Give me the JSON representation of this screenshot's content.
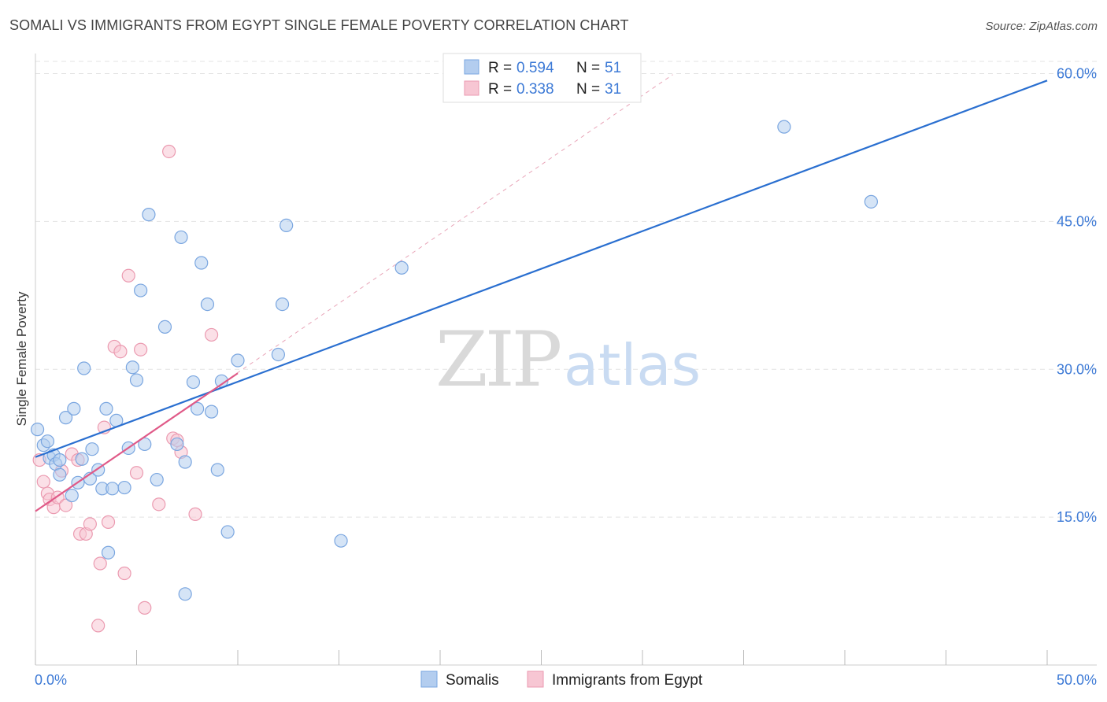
{
  "header": {
    "title": "SOMALI VS IMMIGRANTS FROM EGYPT SINGLE FEMALE POVERTY CORRELATION CHART",
    "source": "Source: ZipAtlas.com"
  },
  "watermark": {
    "zip": "ZIP",
    "atlas": "atlas"
  },
  "colors": {
    "somali_fill": "#b3cdef",
    "somali_stroke": "#7aa6e0",
    "somali_line": "#2a6fd0",
    "egypt_fill": "#f7c6d3",
    "egypt_stroke": "#eb9ab0",
    "egypt_line": "#e05a88",
    "grid": "#e3e3e3",
    "tick_text": "#3d7ad6"
  },
  "chart_data": {
    "type": "scatter",
    "title": "SOMALI VS IMMIGRANTS FROM EGYPT SINGLE FEMALE POVERTY CORRELATION CHART",
    "xlabel": "",
    "ylabel": "Single Female Poverty",
    "xlim": [
      0,
      50
    ],
    "ylim": [
      0,
      61
    ],
    "x_tick_labels": [
      "0.0%",
      "50.0%"
    ],
    "y_ticks": [
      15,
      30,
      45,
      60
    ],
    "y_tick_labels": [
      "15.0%",
      "30.0%",
      "45.0%",
      "60.0%"
    ],
    "grid": true,
    "legend": {
      "position": "top-center",
      "entries": [
        {
          "series": "Somalis",
          "r_label": "R =",
          "r_value": "0.594",
          "n_label": "N =",
          "n_value": "51"
        },
        {
          "series": "Immigrants from Egypt",
          "r_label": "R =",
          "r_value": "0.338",
          "n_label": "N =",
          "n_value": "31"
        }
      ]
    },
    "bottom_legend": [
      "Somalis",
      "Immigrants from Egypt"
    ],
    "series": [
      {
        "name": "Somalis",
        "points": [
          [
            0.1,
            23.9
          ],
          [
            0.4,
            22.3
          ],
          [
            0.6,
            22.7
          ],
          [
            0.7,
            21.0
          ],
          [
            0.9,
            21.3
          ],
          [
            1.0,
            20.4
          ],
          [
            1.2,
            19.3
          ],
          [
            1.2,
            20.8
          ],
          [
            1.5,
            25.1
          ],
          [
            1.8,
            17.2
          ],
          [
            1.9,
            26.0
          ],
          [
            2.1,
            18.5
          ],
          [
            2.4,
            30.1
          ],
          [
            2.3,
            20.9
          ],
          [
            2.7,
            18.9
          ],
          [
            2.8,
            21.9
          ],
          [
            3.1,
            19.8
          ],
          [
            3.3,
            17.9
          ],
          [
            3.5,
            26.0
          ],
          [
            3.6,
            11.4
          ],
          [
            3.8,
            17.9
          ],
          [
            4.0,
            24.8
          ],
          [
            4.4,
            18.0
          ],
          [
            4.6,
            22.0
          ],
          [
            4.8,
            30.2
          ],
          [
            5.0,
            28.9
          ],
          [
            5.2,
            38.0
          ],
          [
            5.4,
            22.4
          ],
          [
            5.6,
            45.7
          ],
          [
            6.0,
            18.8
          ],
          [
            6.4,
            34.3
          ],
          [
            7.0,
            22.4
          ],
          [
            7.2,
            43.4
          ],
          [
            7.4,
            20.6
          ],
          [
            7.4,
            7.2
          ],
          [
            7.8,
            28.7
          ],
          [
            8.0,
            26.0
          ],
          [
            8.2,
            40.8
          ],
          [
            8.5,
            36.6
          ],
          [
            8.7,
            25.7
          ],
          [
            9.0,
            19.8
          ],
          [
            9.2,
            28.8
          ],
          [
            9.5,
            13.5
          ],
          [
            10.0,
            30.9
          ],
          [
            12.0,
            31.5
          ],
          [
            12.2,
            36.6
          ],
          [
            12.4,
            44.6
          ],
          [
            15.1,
            12.6
          ],
          [
            18.1,
            40.3
          ],
          [
            37.0,
            54.6
          ],
          [
            41.3,
            47.0
          ]
        ],
        "fit_line": {
          "x": [
            0,
            50
          ],
          "y": [
            21.1,
            59.3
          ]
        }
      },
      {
        "name": "Immigrants from Egypt",
        "points": [
          [
            0.2,
            20.8
          ],
          [
            0.4,
            18.6
          ],
          [
            0.6,
            17.4
          ],
          [
            0.7,
            16.8
          ],
          [
            0.9,
            16.0
          ],
          [
            1.1,
            17.0
          ],
          [
            1.3,
            19.7
          ],
          [
            1.5,
            16.2
          ],
          [
            1.8,
            21.4
          ],
          [
            2.1,
            20.8
          ],
          [
            2.2,
            13.3
          ],
          [
            2.5,
            13.3
          ],
          [
            2.7,
            14.3
          ],
          [
            3.1,
            4.0
          ],
          [
            3.2,
            10.3
          ],
          [
            3.4,
            24.1
          ],
          [
            3.6,
            14.5
          ],
          [
            3.9,
            32.3
          ],
          [
            4.2,
            31.8
          ],
          [
            4.4,
            9.3
          ],
          [
            4.6,
            39.5
          ],
          [
            5.0,
            19.5
          ],
          [
            5.2,
            32.0
          ],
          [
            5.4,
            5.8
          ],
          [
            6.1,
            16.3
          ],
          [
            6.6,
            52.1
          ],
          [
            6.8,
            23.0
          ],
          [
            7.0,
            22.8
          ],
          [
            7.9,
            15.3
          ],
          [
            8.7,
            33.5
          ],
          [
            7.2,
            21.6
          ]
        ],
        "fit_line": {
          "x": [
            0,
            10
          ],
          "y": [
            15.6,
            29.6
          ]
        },
        "trend_extension": {
          "x": [
            0,
            31.5
          ],
          "y": [
            15.6,
            59.9
          ]
        }
      }
    ]
  }
}
